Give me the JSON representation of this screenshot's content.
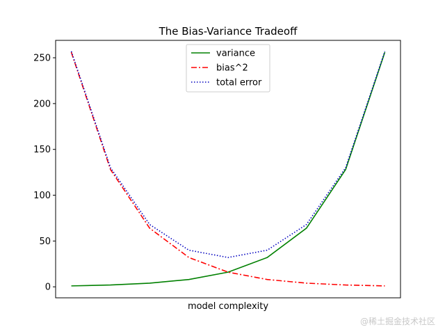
{
  "chart_data": {
    "type": "line",
    "title": "The Bias-Variance Tradeoff",
    "xlabel": "model complexity",
    "ylabel": "",
    "x": [
      0,
      1,
      2,
      3,
      4,
      5,
      6,
      7,
      8
    ],
    "xlim": [
      -0.4,
      8.4
    ],
    "ylim": [
      -12,
      269
    ],
    "yticks": [
      0,
      50,
      100,
      150,
      200,
      250
    ],
    "grid": false,
    "legend": "top-center",
    "series": [
      {
        "name": "variance",
        "values": [
          1,
          2,
          4,
          8,
          16,
          32,
          64,
          128,
          256
        ],
        "color": "#008000",
        "style": "solid"
      },
      {
        "name": "bias^2",
        "values": [
          256,
          128,
          64,
          32,
          16,
          8,
          4,
          2,
          1
        ],
        "color": "#ff0000",
        "style": "dashdot"
      },
      {
        "name": "total error",
        "values": [
          257,
          130,
          68,
          40,
          32,
          40,
          68,
          130,
          257
        ],
        "color": "#0000bf",
        "style": "dotted"
      }
    ]
  },
  "watermark": "@稀土掘金技术社区"
}
